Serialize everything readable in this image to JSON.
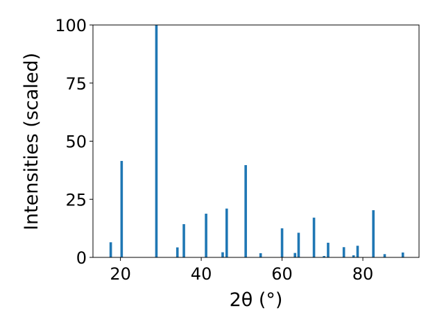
{
  "chart_data": {
    "type": "bar",
    "xlabel": "2θ (°)",
    "ylabel": "Intensities (scaled)",
    "xlim": [
      13.2,
      93.9
    ],
    "ylim": [
      0,
      100
    ],
    "x_ticks": [
      20,
      40,
      60,
      80
    ],
    "y_ticks": [
      0,
      25,
      50,
      75,
      100
    ],
    "grid": false,
    "bar_color": "#1f77b4",
    "x": [
      17.6,
      20.3,
      28.9,
      34.1,
      35.7,
      41.2,
      45.3,
      46.3,
      51.0,
      54.7,
      60.0,
      63.2,
      64.1,
      67.9,
      70.4,
      71.4,
      75.3,
      77.7,
      78.7,
      82.6,
      85.4,
      89.9
    ],
    "values": [
      6.5,
      41.5,
      100,
      4.3,
      14.3,
      18.8,
      2.2,
      21.0,
      39.7,
      1.8,
      12.5,
      1.9,
      10.6,
      17.1,
      0.6,
      6.3,
      4.4,
      0.9,
      5.0,
      20.3,
      1.4,
      2.1
    ]
  }
}
